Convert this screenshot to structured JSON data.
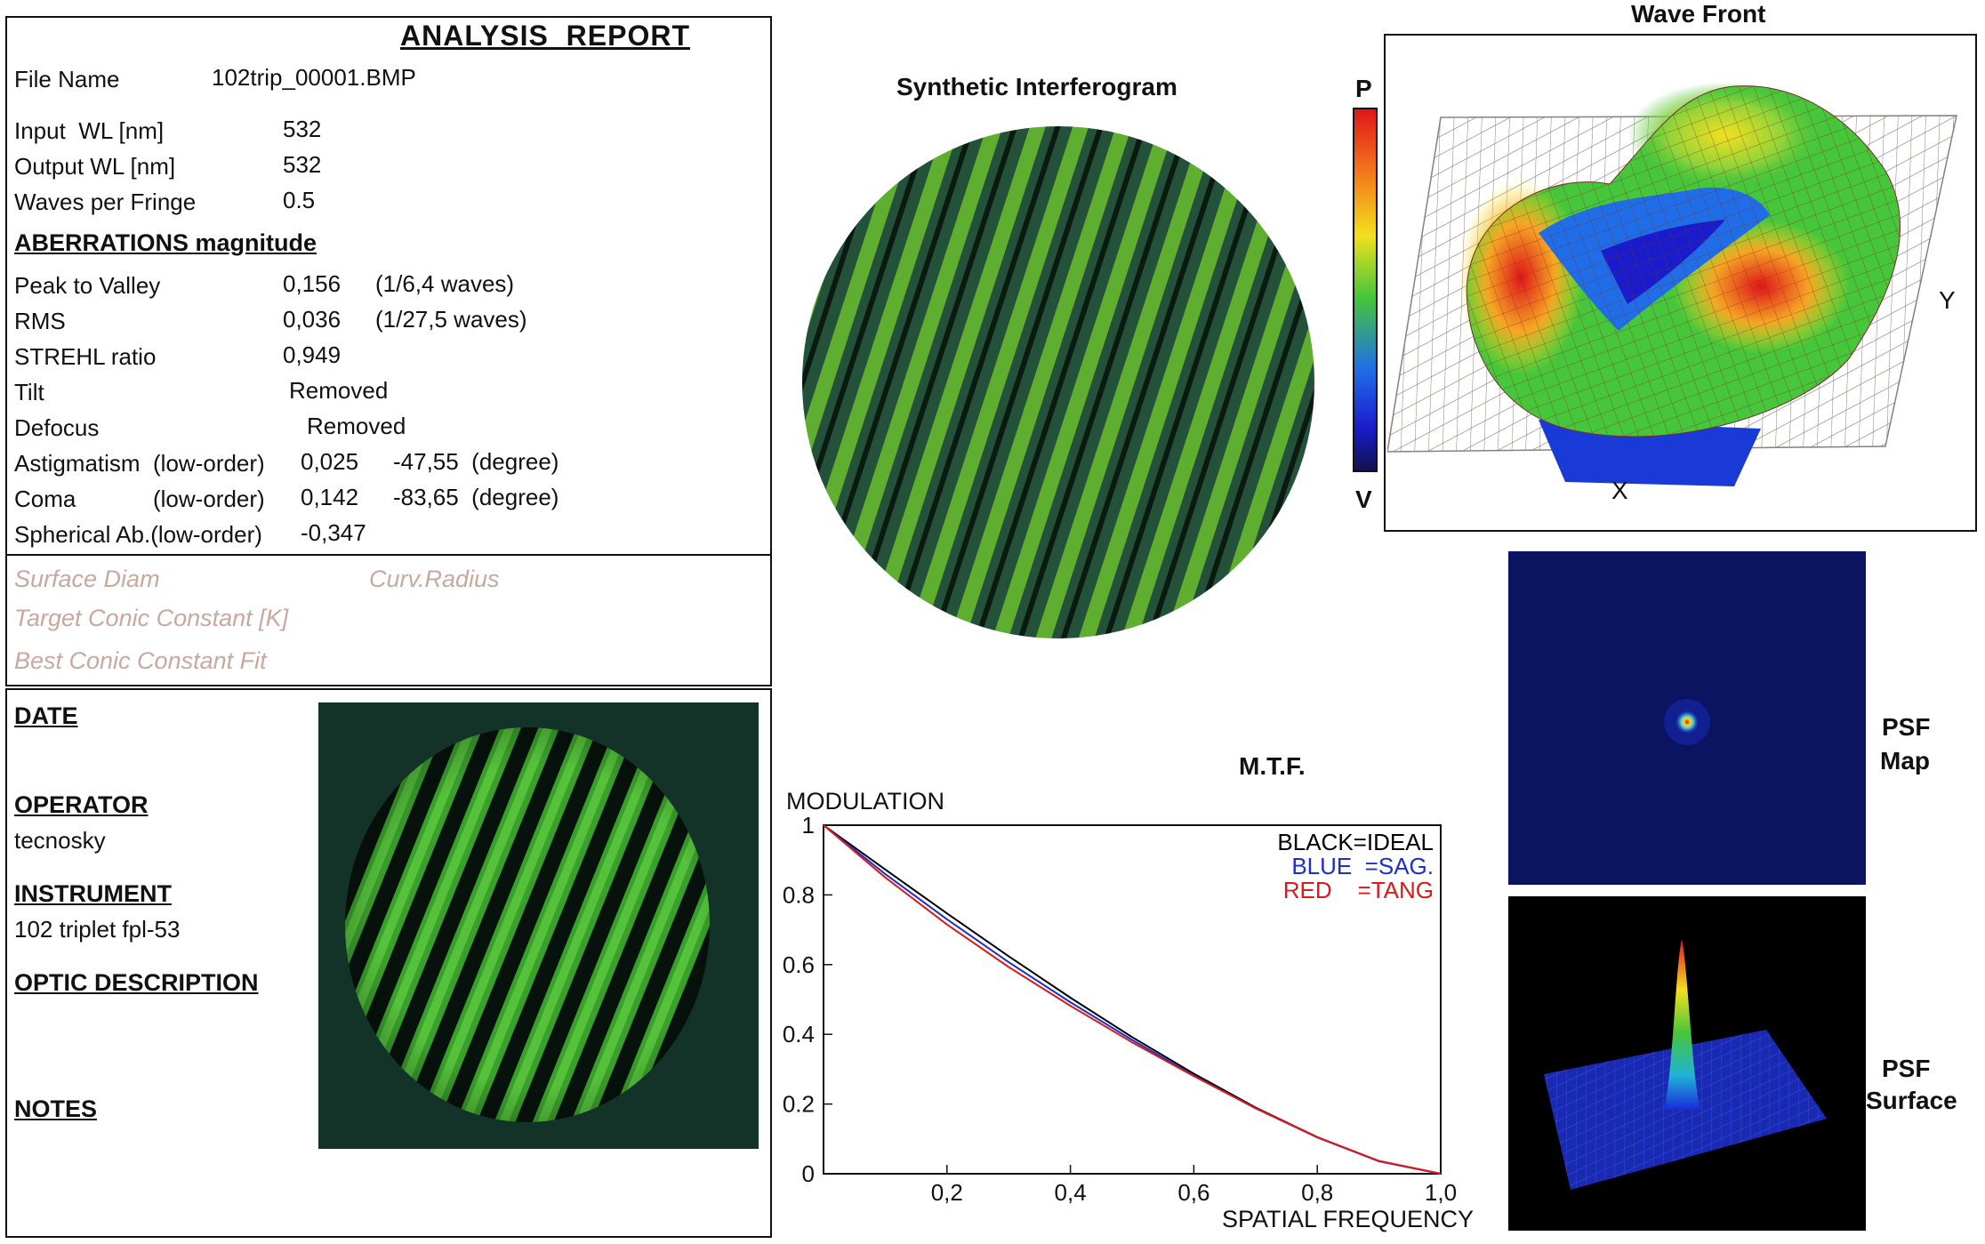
{
  "report": {
    "title": "ANALYSIS  REPORT",
    "file_name_label": "File Name",
    "file_name": "102trip_00001.BMP",
    "input_wl_label": "Input  WL [nm]",
    "input_wl": "532",
    "output_wl_label": "Output WL [nm]",
    "output_wl": "532",
    "waves_label": "Waves per Fringe",
    "waves": "0.5",
    "aberrations_header": "ABERRATIONS magnitude",
    "ptv_label": "Peak to Valley",
    "ptv": "0,156",
    "ptv_waves": "(1/6,4 waves)",
    "rms_label": "RMS",
    "rms": "0,036",
    "rms_waves": "(1/27,5 waves)",
    "strehl_label": "STREHL ratio",
    "strehl": "0,949",
    "tilt_label": "Tilt",
    "tilt": "Removed",
    "defocus_label": "Defocus",
    "defocus": "Removed",
    "astig_label": "Astigmatism  (low-order)",
    "astig": "0,025",
    "astig_angle": "-47,55  (degree)",
    "coma_label_a": "Coma",
    "coma_label_b": "(low-order)",
    "coma": "0,142",
    "coma_angle": "-83,65  (degree)",
    "spherical_label": "Spherical Ab.(low-order)",
    "spherical": "-0,347",
    "surface_diam": "Surface Diam",
    "curv_radius": "Curv.Radius",
    "target_conic": "Target Conic Constant [K]",
    "best_conic": "Best Conic Constant Fit"
  },
  "info": {
    "date_label": "DATE",
    "operator_label": "OPERATOR",
    "operator": "tecnosky",
    "instrument_label": "INSTRUMENT",
    "instrument": "102 triplet fpl-53",
    "optic_label": "OPTIC DESCRIPTION",
    "notes_label": "NOTES"
  },
  "interferogram": {
    "title": "Synthetic Interferogram"
  },
  "wavefront": {
    "title": "Wave Front",
    "scale_top": "P",
    "scale_bottom": "V",
    "y_label": "Y",
    "x_label": "X"
  },
  "psf": {
    "map_line1": "PSF",
    "map_line2": "Map",
    "surface_line1": "PSF",
    "surface_line2": "Surface"
  },
  "colors": {
    "fringe_green": "#3f8f2f",
    "fringe_dark": "#0b1a10",
    "psf_bg": "#0a1460",
    "mtf_ideal": "#000000",
    "mtf_sag": "#1a2fd0",
    "mtf_tang": "#e01818"
  },
  "chart_data": {
    "type": "line",
    "title": "M.T.F.",
    "ylabel": "MODULATION",
    "xlabel": "SPATIAL FREQUENCY",
    "xlim": [
      0,
      1.0
    ],
    "ylim": [
      0,
      1
    ],
    "x_ticks": [
      "0,2",
      "0,4",
      "0,6",
      "0,8",
      "1,0"
    ],
    "y_ticks": [
      "1",
      "0.8",
      "0.6",
      "0.4",
      "0.2",
      "0"
    ],
    "legend": [
      {
        "label": "BLACK=IDEAL",
        "color": "#000000"
      },
      {
        "label": "BLUE  =SAG.",
        "color": "#1a2fd0"
      },
      {
        "label": "RED    =TANG",
        "color": "#e01818"
      }
    ],
    "x": [
      0,
      0.1,
      0.2,
      0.3,
      0.4,
      0.5,
      0.6,
      0.7,
      0.8,
      0.9,
      1.0
    ],
    "series": [
      {
        "name": "IDEAL",
        "color": "#000000",
        "values": [
          1.0,
          0.873,
          0.747,
          0.624,
          0.505,
          0.392,
          0.287,
          0.19,
          0.105,
          0.036,
          0.0
        ]
      },
      {
        "name": "SAG.",
        "color": "#1a2fd0",
        "values": [
          1.0,
          0.86,
          0.73,
          0.607,
          0.492,
          0.384,
          0.282,
          0.188,
          0.104,
          0.036,
          0.0
        ]
      },
      {
        "name": "TANG",
        "color": "#e01818",
        "values": [
          1.0,
          0.85,
          0.715,
          0.593,
          0.482,
          0.377,
          0.28,
          0.188,
          0.105,
          0.037,
          0.0
        ]
      }
    ]
  }
}
